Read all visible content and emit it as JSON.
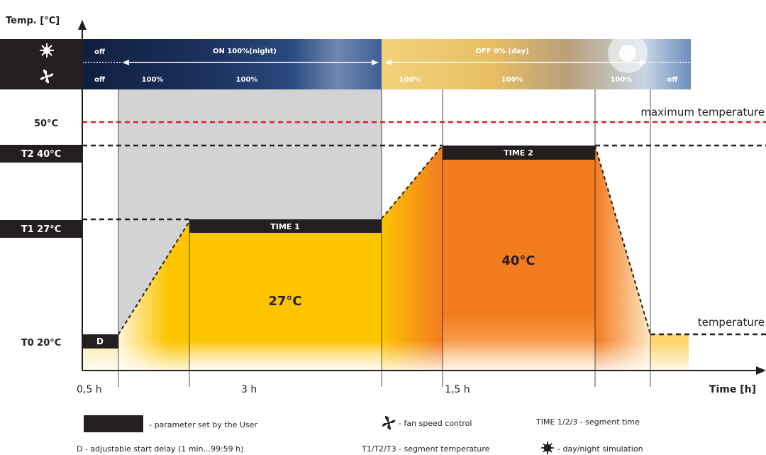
{
  "axes": {
    "y_title": "Temp. [°C]",
    "x_title": "Time [h]"
  },
  "header": {
    "light_row": {
      "off_left": "off",
      "night": "ON 100%(night)",
      "day": "OFF 0% (day)"
    },
    "fan_row": {
      "off_left": "off",
      "p1": "100%",
      "p2": "100%",
      "p3": "100%",
      "p4": "100%",
      "p5": "100%",
      "off_right": "off"
    }
  },
  "y_labels": {
    "max": "50°C",
    "t2": "T2 40°C",
    "t1": "T1 27°C",
    "t0": "T0 20°C"
  },
  "segments": {
    "d": "D",
    "time1": "TIME 1",
    "time2": "TIME 2",
    "temp1": "27°C",
    "temp2": "40°C"
  },
  "right_labels": {
    "max": "maximum temperature",
    "temp": "temperature"
  },
  "x_labels": {
    "a": "0,5 h",
    "b": "3 h",
    "c": "1,5 h"
  },
  "legend": {
    "user_param": "- parameter set by the User",
    "delay": "D - adjustable start delay (1 min...99:59 h)",
    "fan": "- fan speed control",
    "segtemp": "T1/T2/T3 - segment temperature",
    "segtime": "TIME 1/2/3 - segment time",
    "daynight": "- day/night simulation"
  },
  "colors": {
    "user_param": "#231f20",
    "max_line": "#e31e24",
    "segment1_fill": "#fdc400",
    "segment2_fill": "#f37b20",
    "night_band": "#1f3560",
    "day_band": "#e9c266",
    "delay_gray": "#d1d3d4"
  },
  "icons": {
    "light": "sun-icon",
    "fan": "fan-icon"
  }
}
